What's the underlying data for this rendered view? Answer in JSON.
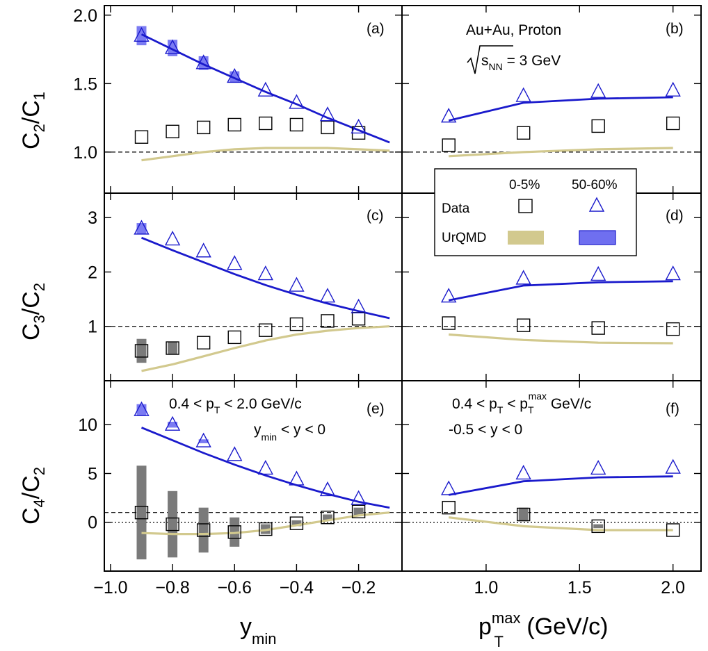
{
  "chart_data": [
    {
      "panel": "(a)",
      "type": "scatter",
      "xlabel": "y_min",
      "ylabel": "C2/C1",
      "xlim": [
        -1.02,
        -0.06
      ],
      "ylim": [
        0.7,
        2.07
      ],
      "yticks": [
        "1.0",
        "1.5",
        "2.0"
      ],
      "ytick_values": [
        1.0,
        1.5,
        2.0
      ],
      "reference_lines": [
        1.0
      ],
      "series": [
        {
          "name": "Data 0-5%",
          "marker": "square",
          "x": [
            -0.9,
            -0.8,
            -0.7,
            -0.6,
            -0.5,
            -0.4,
            -0.3,
            -0.2
          ],
          "y": [
            1.11,
            1.15,
            1.18,
            1.2,
            1.21,
            1.2,
            1.18,
            1.14
          ],
          "sys": [
            0,
            0,
            0,
            0,
            0,
            0,
            0,
            0
          ]
        },
        {
          "name": "Data 50-60%",
          "marker": "triangle",
          "x": [
            -0.9,
            -0.8,
            -0.7,
            -0.6,
            -0.5,
            -0.4,
            -0.3,
            -0.2
          ],
          "y": [
            1.85,
            1.76,
            1.65,
            1.55,
            1.45,
            1.36,
            1.27,
            1.18
          ],
          "sys": [
            0.07,
            0.06,
            0.05,
            0.04,
            0.0,
            0.0,
            0.0,
            0.0
          ]
        },
        {
          "name": "UrQMD 0-5%",
          "style": "line",
          "x": [
            -0.9,
            -0.8,
            -0.7,
            -0.6,
            -0.5,
            -0.4,
            -0.3,
            -0.2,
            -0.1
          ],
          "y": [
            0.94,
            0.97,
            1.0,
            1.02,
            1.03,
            1.03,
            1.03,
            1.02,
            1.01
          ]
        },
        {
          "name": "UrQMD 50-60%",
          "style": "line",
          "x": [
            -0.9,
            -0.8,
            -0.7,
            -0.6,
            -0.5,
            -0.4,
            -0.3,
            -0.2,
            -0.1
          ],
          "y": [
            1.86,
            1.75,
            1.64,
            1.54,
            1.44,
            1.35,
            1.25,
            1.16,
            1.07
          ]
        }
      ]
    },
    {
      "panel": "(b)",
      "type": "scatter",
      "xlabel": "pT^max (GeV/c)",
      "ylabel": "C2/C1",
      "xlim": [
        0.55,
        2.15
      ],
      "ylim": [
        0.7,
        2.07
      ],
      "reference_lines": [
        1.0
      ],
      "annotations": [
        "Au+Au, Proton",
        "√sNN = 3 GeV"
      ],
      "series": [
        {
          "name": "Data 0-5%",
          "marker": "square",
          "x": [
            0.8,
            1.2,
            1.6,
            2.0
          ],
          "y": [
            1.05,
            1.14,
            1.19,
            1.21
          ],
          "sys": [
            0,
            0,
            0,
            0
          ]
        },
        {
          "name": "Data 50-60%",
          "marker": "triangle",
          "x": [
            0.8,
            1.2,
            1.6,
            2.0
          ],
          "y": [
            1.26,
            1.41,
            1.44,
            1.45
          ],
          "sys": [
            0,
            0,
            0,
            0
          ]
        },
        {
          "name": "UrQMD 0-5%",
          "style": "line",
          "x": [
            0.8,
            1.2,
            1.6,
            2.0
          ],
          "y": [
            0.97,
            1.0,
            1.02,
            1.03
          ]
        },
        {
          "name": "UrQMD 50-60%",
          "style": "line",
          "x": [
            0.8,
            1.2,
            1.6,
            2.0
          ],
          "y": [
            1.23,
            1.36,
            1.39,
            1.4
          ]
        }
      ]
    },
    {
      "panel": "(c)",
      "type": "scatter",
      "xlabel": "y_min",
      "ylabel": "C3/C2",
      "xlim": [
        -1.02,
        -0.06
      ],
      "ylim": [
        0.0,
        3.45
      ],
      "yticks": [
        "1",
        "2",
        "3"
      ],
      "ytick_values": [
        1,
        2,
        3
      ],
      "reference_lines": [
        1.0
      ],
      "series": [
        {
          "name": "Data 0-5%",
          "marker": "square",
          "x": [
            -0.9,
            -0.8,
            -0.7,
            -0.6,
            -0.5,
            -0.4,
            -0.3,
            -0.2
          ],
          "y": [
            0.55,
            0.6,
            0.7,
            0.8,
            0.93,
            1.04,
            1.1,
            1.14
          ],
          "sys": [
            0.22,
            0.12,
            0.0,
            0.0,
            0.0,
            0.0,
            0.0,
            0.0
          ]
        },
        {
          "name": "Data 50-60%",
          "marker": "triangle",
          "x": [
            -0.9,
            -0.8,
            -0.7,
            -0.6,
            -0.5,
            -0.4,
            -0.3,
            -0.2
          ],
          "y": [
            2.8,
            2.6,
            2.38,
            2.15,
            1.96,
            1.75,
            1.55,
            1.35
          ],
          "sys": [
            0.1,
            0,
            0,
            0,
            0,
            0,
            0,
            0
          ]
        },
        {
          "name": "UrQMD 0-5%",
          "style": "line",
          "x": [
            -0.9,
            -0.8,
            -0.7,
            -0.6,
            -0.5,
            -0.4,
            -0.3,
            -0.2,
            -0.1
          ],
          "y": [
            0.18,
            0.3,
            0.45,
            0.6,
            0.74,
            0.85,
            0.92,
            0.97,
            1.0
          ]
        },
        {
          "name": "UrQMD 50-60%",
          "style": "line",
          "x": [
            -0.9,
            -0.8,
            -0.7,
            -0.6,
            -0.5,
            -0.4,
            -0.3,
            -0.2,
            -0.1
          ],
          "y": [
            2.63,
            2.4,
            2.18,
            1.96,
            1.76,
            1.58,
            1.42,
            1.28,
            1.15
          ]
        }
      ]
    },
    {
      "panel": "(d)",
      "type": "scatter",
      "xlabel": "pT^max (GeV/c)",
      "ylabel": "C3/C2",
      "xlim": [
        0.55,
        2.15
      ],
      "ylim": [
        0.0,
        3.45
      ],
      "reference_lines": [
        1.0
      ],
      "series": [
        {
          "name": "Data 0-5%",
          "marker": "square",
          "x": [
            0.8,
            1.2,
            1.6,
            2.0
          ],
          "y": [
            1.06,
            1.02,
            0.97,
            0.95
          ],
          "sys": [
            0,
            0,
            0,
            0
          ]
        },
        {
          "name": "Data 50-60%",
          "marker": "triangle",
          "x": [
            0.8,
            1.2,
            1.6,
            2.0
          ],
          "y": [
            1.55,
            1.88,
            1.95,
            1.96
          ],
          "sys": [
            0,
            0,
            0,
            0
          ]
        },
        {
          "name": "UrQMD 0-5%",
          "style": "line",
          "x": [
            0.8,
            1.2,
            1.6,
            2.0
          ],
          "y": [
            0.85,
            0.75,
            0.7,
            0.69
          ]
        },
        {
          "name": "UrQMD 50-60%",
          "style": "line",
          "x": [
            0.8,
            1.2,
            1.6,
            2.0
          ],
          "y": [
            1.48,
            1.75,
            1.81,
            1.83
          ]
        }
      ]
    },
    {
      "panel": "(e)",
      "type": "scatter",
      "xlabel": "y_min",
      "ylabel": "C4/C2",
      "xlim": [
        -1.02,
        -0.06
      ],
      "ylim": [
        -5.0,
        14.5
      ],
      "yticks": [
        "0",
        "5",
        "10"
      ],
      "ytick_values": [
        0,
        5,
        10
      ],
      "reference_lines": [
        1.0,
        0.0
      ],
      "annotations": [
        "0.4 < pT < 2.0 GeV/c",
        "ymin < y < 0"
      ],
      "series": [
        {
          "name": "Data 0-5%",
          "marker": "square",
          "x": [
            -0.9,
            -0.8,
            -0.7,
            -0.6,
            -0.5,
            -0.4,
            -0.3,
            -0.2
          ],
          "y": [
            1.0,
            -0.2,
            -0.8,
            -1.0,
            -0.7,
            -0.1,
            0.5,
            1.1
          ],
          "sys": [
            4.8,
            3.4,
            2.3,
            1.5,
            0.5,
            0.3,
            0.3,
            0.4
          ]
        },
        {
          "name": "Data 50-60%",
          "marker": "triangle",
          "x": [
            -0.9,
            -0.8,
            -0.7,
            -0.6,
            -0.5,
            -0.4,
            -0.3,
            -0.2
          ],
          "y": [
            11.5,
            10.0,
            8.3,
            6.9,
            5.5,
            4.4,
            3.3,
            2.4
          ],
          "sys": [
            0.6,
            0.3,
            0.2,
            0,
            0,
            0,
            0,
            0
          ]
        },
        {
          "name": "UrQMD 0-5%",
          "style": "line",
          "x": [
            -0.9,
            -0.8,
            -0.7,
            -0.6,
            -0.5,
            -0.4,
            -0.3,
            -0.2,
            -0.1
          ],
          "y": [
            -1.1,
            -1.2,
            -1.2,
            -1.1,
            -0.8,
            -0.3,
            0.2,
            0.7,
            1.0
          ]
        },
        {
          "name": "UrQMD 50-60%",
          "style": "line",
          "x": [
            -0.9,
            -0.8,
            -0.7,
            -0.6,
            -0.5,
            -0.4,
            -0.3,
            -0.2,
            -0.1
          ],
          "y": [
            9.7,
            8.4,
            7.1,
            5.9,
            4.8,
            3.8,
            2.9,
            2.1,
            1.5
          ]
        }
      ]
    },
    {
      "panel": "(f)",
      "type": "scatter",
      "xlabel": "pT^max (GeV/c)",
      "ylabel": "C4/C2",
      "xlim": [
        0.55,
        2.15
      ],
      "ylim": [
        -5.0,
        14.5
      ],
      "xticks": [
        "1.0",
        "1.5",
        "2.0"
      ],
      "xtick_values": [
        1.0,
        1.5,
        2.0
      ],
      "reference_lines": [
        1.0,
        0.0
      ],
      "annotations": [
        "0.4 < pT < pTmax GeV/c",
        "-0.5 < y < 0"
      ],
      "series": [
        {
          "name": "Data 0-5%",
          "marker": "square",
          "x": [
            0.8,
            1.2,
            1.6,
            2.0
          ],
          "y": [
            1.5,
            0.8,
            -0.4,
            -0.8
          ],
          "sys": [
            0,
            0.7,
            0.2,
            0
          ]
        },
        {
          "name": "Data 50-60%",
          "marker": "triangle",
          "x": [
            0.8,
            1.2,
            1.6,
            2.0
          ],
          "y": [
            3.4,
            5.0,
            5.5,
            5.6
          ],
          "sys": [
            0,
            0,
            0,
            0
          ]
        },
        {
          "name": "UrQMD 0-5%",
          "style": "line",
          "x": [
            0.8,
            1.2,
            1.6,
            2.0
          ],
          "y": [
            0.5,
            -0.4,
            -0.8,
            -0.8
          ]
        },
        {
          "name": "UrQMD 50-60%",
          "style": "line",
          "x": [
            0.8,
            1.2,
            1.6,
            2.0
          ],
          "y": [
            2.8,
            4.2,
            4.6,
            4.7
          ]
        }
      ]
    }
  ],
  "x_axes": {
    "left": {
      "ticks": [
        "−1.0",
        "−0.8",
        "−0.6",
        "−0.4",
        "−0.2"
      ],
      "values": [
        -1.0,
        -0.8,
        -0.6,
        -0.4,
        -0.2
      ]
    },
    "right": {
      "ticks": [
        "1.0",
        "1.5",
        "2.0"
      ],
      "values": [
        1.0,
        1.5,
        2.0
      ]
    }
  },
  "labels": {
    "panel_a": "(a)",
    "panel_b": "(b)",
    "panel_c": "(c)",
    "panel_d": "(d)",
    "panel_e": "(e)",
    "panel_f": "(f)",
    "ylabel_top_main1": "C",
    "ylabel_top_sub1": "2",
    "ylabel_top_main2": "/C",
    "ylabel_top_sub2": "1",
    "ylabel_mid_main1": "C",
    "ylabel_mid_sub1": "3",
    "ylabel_mid_main2": "/C",
    "ylabel_mid_sub2": "2",
    "ylabel_bot_main1": "C",
    "ylabel_bot_sub1": "4",
    "ylabel_bot_main2": "/C",
    "ylabel_bot_sub2": "2",
    "xlabel_left_main": "y",
    "xlabel_left_sub": "min",
    "xlabel_right_main": "p",
    "xlabel_right_sup": "max",
    "xlabel_right_sub": "T",
    "xlabel_right_units": " (GeV/c)",
    "ann_b_line1": "Au+Au, Proton",
    "ann_b_s": "s",
    "ann_b_nn": "NN",
    "ann_b_eq": " = 3 GeV",
    "ann_e_1a": "0.4 < p",
    "ann_e_1sub": "T",
    "ann_e_1b": " < 2.0 GeV/c",
    "ann_e_2a": "y",
    "ann_e_2sub": "min",
    "ann_e_2b": " < y < 0",
    "ann_f_1a": "0.4 < p",
    "ann_f_1sub": "T",
    "ann_f_1b": " < p",
    "ann_f_1sub2": "T",
    "ann_f_1sup": "max",
    "ann_f_1c": "  GeV/c",
    "ann_f_2": "-0.5 < y < 0"
  },
  "legend": {
    "col1": "0-5%",
    "col2": "50-60%",
    "row1": "Data",
    "row2": "UrQMD"
  },
  "colors": {
    "data_central": "#000000",
    "data_peripheral": "#1a1acc",
    "urqmd_central": "#d2c98e",
    "urqmd_peripheral": "#1a1acc",
    "urqmd_peripheral_band": "#6f6ff0",
    "sys_central": "#7a7a7a",
    "sys_peripheral": "#7b7bf2"
  }
}
